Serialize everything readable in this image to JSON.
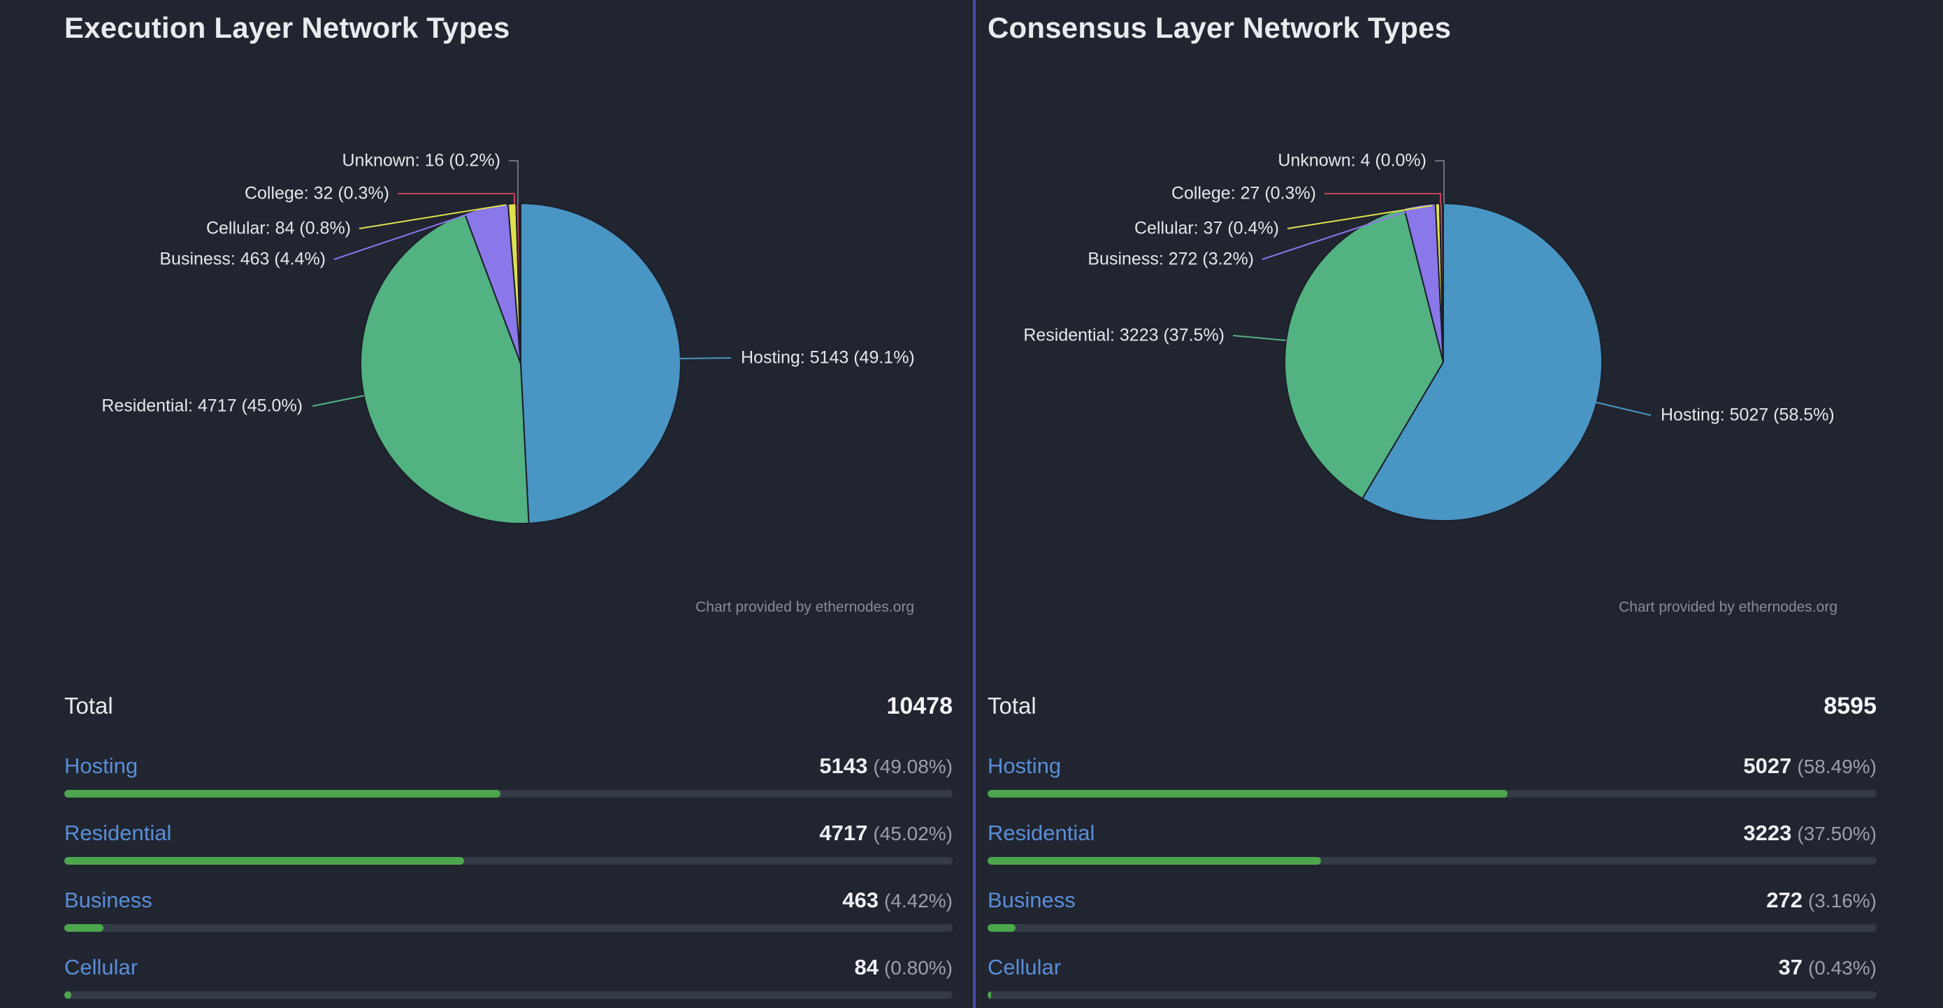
{
  "colors": {
    "background": "#212530",
    "divider": "#474aa8",
    "title": "#e9ebee",
    "link_blue": "#5a8ed8",
    "bar_fill": "#4da64d",
    "bar_track": "#343a46",
    "value_white": "#eef0f3",
    "percent_gray": "#99a0aa",
    "pie_label": "#e4e7ea",
    "attribution_gray": "#878d96",
    "slice_stroke": "#1b1f29",
    "leader_unknown": "#6a7280",
    "slices": {
      "Hosting": "#4995c4",
      "Residential": "#52b282",
      "Business": "#8a77e9",
      "Cellular": "#dfe04e",
      "College": "#c24456",
      "Unknown": "#4a5160"
    }
  },
  "panels": [
    {
      "title": "Execution Layer Network Types",
      "attribution": "Chart provided by ethernodes.org",
      "table": {
        "total_label": "Total",
        "total_value": "10478",
        "rows": [
          {
            "label": "Hosting",
            "value": "5143",
            "percent": "(49.08%)",
            "bar_pct": 49.08
          },
          {
            "label": "Residential",
            "value": "4717",
            "percent": "(45.02%)",
            "bar_pct": 45.02
          },
          {
            "label": "Business",
            "value": "463",
            "percent": "(4.42%)",
            "bar_pct": 4.42
          },
          {
            "label": "Cellular",
            "value": "84",
            "percent": "(0.80%)",
            "bar_pct": 0.8
          }
        ]
      }
    },
    {
      "title": "Consensus Layer Network Types",
      "attribution": "Chart provided by ethernodes.org",
      "table": {
        "total_label": "Total",
        "total_value": "8595",
        "rows": [
          {
            "label": "Hosting",
            "value": "5027",
            "percent": "(58.49%)",
            "bar_pct": 58.49
          },
          {
            "label": "Residential",
            "value": "3223",
            "percent": "(37.50%)",
            "bar_pct": 37.5
          },
          {
            "label": "Business",
            "value": "272",
            "percent": "(3.16%)",
            "bar_pct": 3.16
          },
          {
            "label": "Cellular",
            "value": "37",
            "percent": "(0.43%)",
            "bar_pct": 0.43
          }
        ]
      }
    }
  ],
  "chart_data": [
    {
      "type": "pie",
      "title": "Execution Layer Network Types",
      "total": 10478,
      "start": "12 o'clock",
      "direction": "clockwise",
      "legend": "callout labels",
      "attribution": "Chart provided by ethernodes.org",
      "slices": [
        {
          "label": "Hosting",
          "value": 5143,
          "pct_label": "49.1%"
        },
        {
          "label": "Residential",
          "value": 4717,
          "pct_label": "45.0%"
        },
        {
          "label": "Business",
          "value": 463,
          "pct_label": "4.4%"
        },
        {
          "label": "Cellular",
          "value": 84,
          "pct_label": "0.8%"
        },
        {
          "label": "College",
          "value": 32,
          "pct_label": "0.3%"
        },
        {
          "label": "Unknown",
          "value": 16,
          "pct_label": "0.2%"
        }
      ]
    },
    {
      "type": "pie",
      "title": "Consensus Layer Network Types",
      "total": 8595,
      "start": "12 o'clock",
      "direction": "clockwise",
      "legend": "callout labels",
      "attribution": "Chart provided by ethernodes.org",
      "slices": [
        {
          "label": "Hosting",
          "value": 5027,
          "pct_label": "58.5%"
        },
        {
          "label": "Residential",
          "value": 3223,
          "pct_label": "37.5%"
        },
        {
          "label": "Business",
          "value": 272,
          "pct_label": "3.2%"
        },
        {
          "label": "Cellular",
          "value": 37,
          "pct_label": "0.4%"
        },
        {
          "label": "College",
          "value": 27,
          "pct_label": "0.3%"
        },
        {
          "label": "Unknown",
          "value": 4,
          "pct_label": "0.0%"
        }
      ]
    }
  ]
}
